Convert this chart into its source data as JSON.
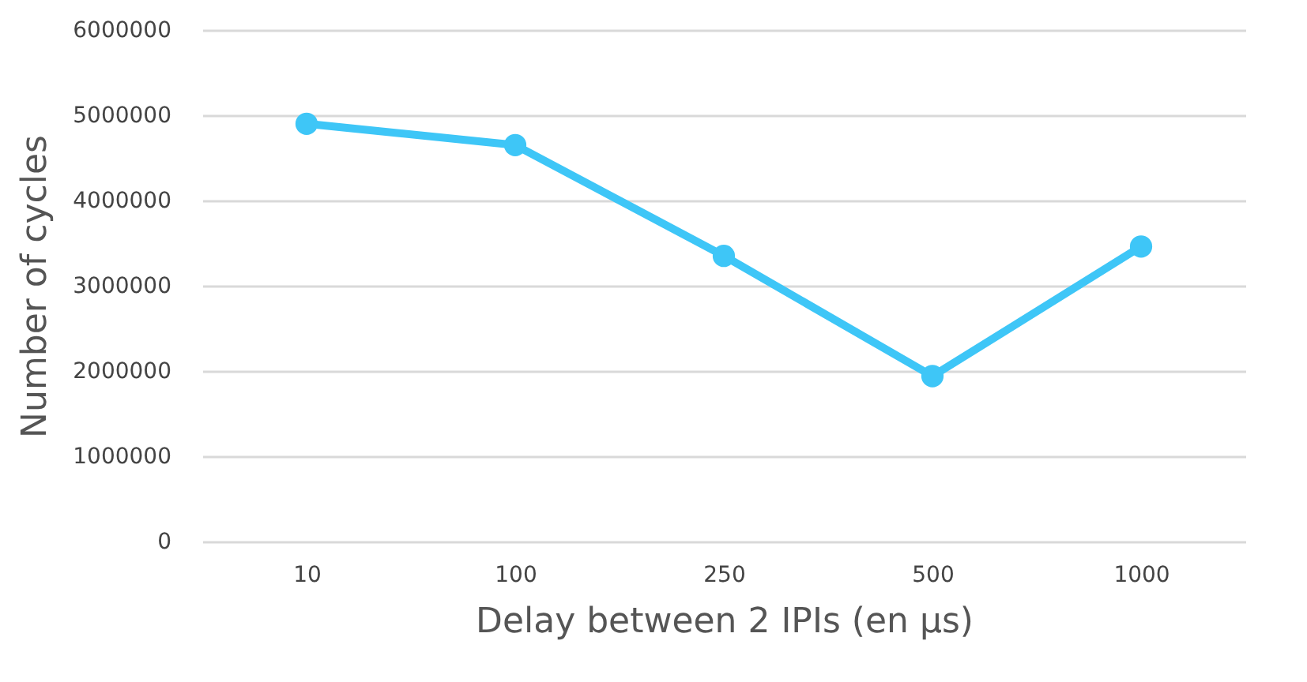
{
  "chart_data": {
    "type": "line",
    "xlabel": "Delay between 2 IPIs (en µs)",
    "ylabel": "Number of cycles",
    "categories": [
      "10",
      "100",
      "250",
      "500",
      "1000"
    ],
    "series": [
      {
        "color": "#3ec6f7",
        "values": [
          4900000,
          4650000,
          3350000,
          1940000,
          3460000
        ]
      }
    ],
    "ylim": [
      0,
      6000000
    ],
    "yticks": [
      0,
      1000000,
      2000000,
      3000000,
      4000000,
      5000000,
      6000000
    ],
    "grid": "y",
    "marker": "circle",
    "line_style": "solid",
    "legend": false
  }
}
